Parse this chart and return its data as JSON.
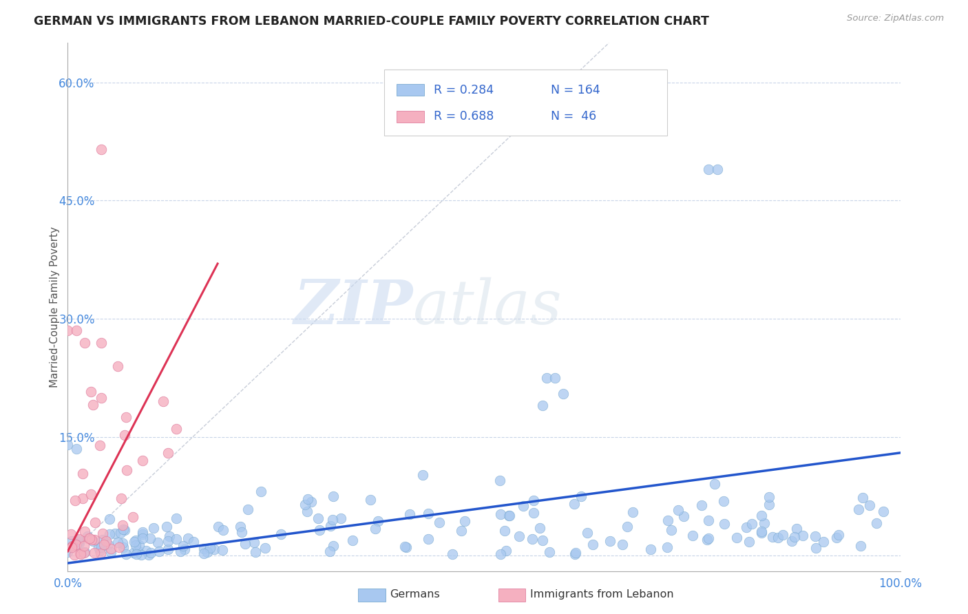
{
  "title": "GERMAN VS IMMIGRANTS FROM LEBANON MARRIED-COUPLE FAMILY POVERTY CORRELATION CHART",
  "source": "Source: ZipAtlas.com",
  "ylabel_label": "Married-Couple Family Poverty",
  "watermark_zip": "ZIP",
  "watermark_atlas": "atlas",
  "legend_r_blue": "R = 0.284",
  "legend_n_blue": "N = 164",
  "legend_r_pink": "R = 0.688",
  "legend_n_pink": "N =  46",
  "legend_label_blue": "Germans",
  "legend_label_pink": "Immigrants from Lebanon",
  "blue_color": "#a8c8f0",
  "blue_edge": "#7aaad0",
  "pink_color": "#f5b0c0",
  "pink_edge": "#e080a0",
  "trend_blue_color": "#2255cc",
  "trend_pink_color": "#dd3355",
  "ref_line_color": "#b0b8c8",
  "grid_color": "#c8d4e8",
  "title_color": "#222222",
  "axis_tick_color": "#4488dd",
  "ylabel_color": "#555555",
  "source_color": "#999999",
  "legend_text_color": "#3366cc",
  "R_blue": 0.284,
  "N_blue": 164,
  "R_pink": 0.688,
  "N_pink": 46,
  "xlim": [
    0.0,
    1.0
  ],
  "ylim": [
    -0.02,
    0.65
  ],
  "yticks": [
    0.0,
    0.15,
    0.3,
    0.45,
    0.6
  ],
  "ytick_labels": [
    "",
    "15.0%",
    "30.0%",
    "45.0%",
    "60.0%"
  ],
  "blue_trend_x": [
    0.0,
    1.0
  ],
  "blue_trend_y": [
    -0.01,
    0.13
  ],
  "pink_trend_x": [
    0.0,
    0.18
  ],
  "pink_trend_y": [
    0.005,
    0.37
  ]
}
